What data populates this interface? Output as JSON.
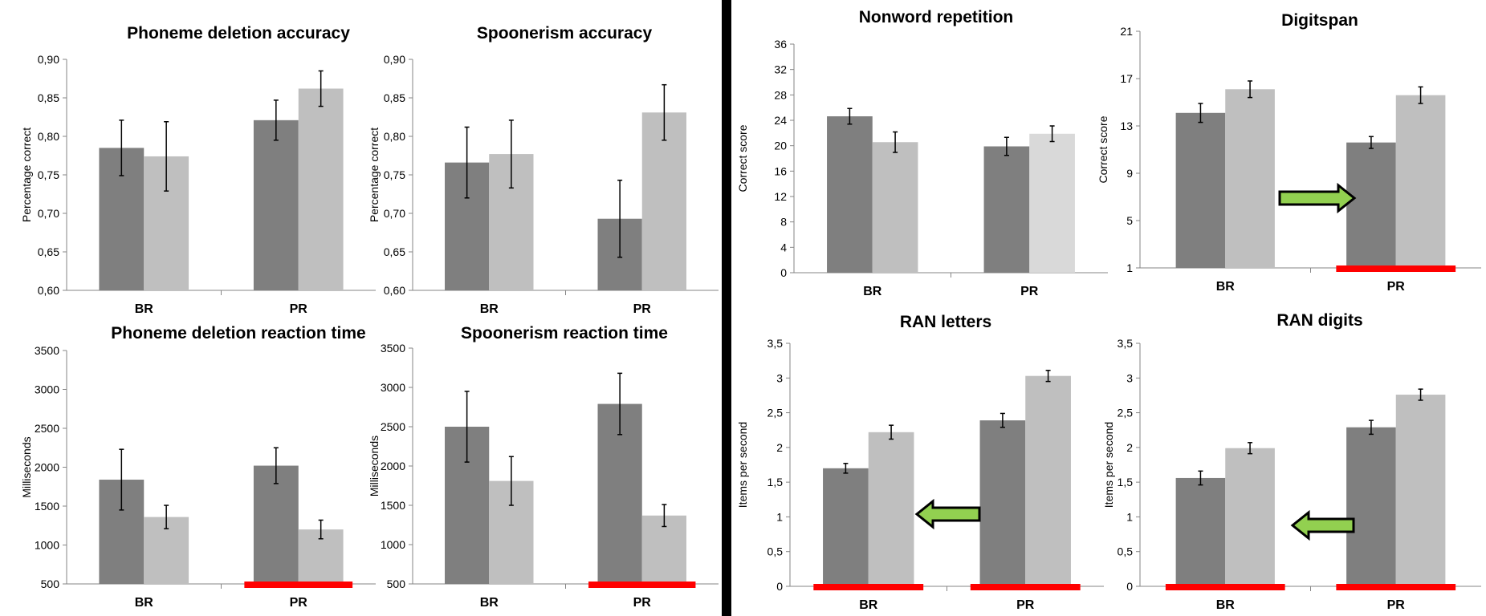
{
  "colors": {
    "dark_bar": "#7f7f7f",
    "light_bar": "#bfbfbf",
    "lighter_bar": "#d9d9d9",
    "highlight": "#ff0000",
    "arrow": "#92d050",
    "axis": "#868686"
  },
  "chart_data": [
    {
      "type": "bar",
      "title": "Phoneme deletion accuracy",
      "xlabel": "",
      "ylabel": "Percentage correct",
      "categories": [
        "BR",
        "PR"
      ],
      "ylim": [
        0.6,
        0.9
      ],
      "yticks": [
        "0,60",
        "0,65",
        "0,70",
        "0,75",
        "0,80",
        "0,85",
        "0,90"
      ],
      "series": [
        {
          "values": [
            0.785,
            0.821
          ],
          "errors": [
            0.036,
            0.026
          ]
        },
        {
          "values": [
            0.774,
            0.862
          ],
          "errors": [
            0.045,
            0.023
          ]
        }
      ],
      "highlight": [],
      "arrow": null
    },
    {
      "type": "bar",
      "title": "Spoonerism accuracy",
      "xlabel": "",
      "ylabel": "Percentage correct",
      "categories": [
        "BR",
        "PR"
      ],
      "ylim": [
        0.6,
        0.9
      ],
      "yticks": [
        "0,60",
        "0,65",
        "0,70",
        "0,75",
        "0,80",
        "0,85",
        "0,90"
      ],
      "series": [
        {
          "values": [
            0.766,
            0.693
          ],
          "errors": [
            0.046,
            0.05
          ]
        },
        {
          "values": [
            0.777,
            0.831
          ],
          "errors": [
            0.044,
            0.036
          ]
        }
      ],
      "highlight": [],
      "arrow": null
    },
    {
      "type": "bar",
      "title": "Phoneme deletion reaction time",
      "xlabel": "",
      "ylabel": "Milliseconds",
      "categories": [
        "BR",
        "PR"
      ],
      "ylim": [
        500,
        3500
      ],
      "yticks": [
        "500",
        "1000",
        "1500",
        "2000",
        "2500",
        "3000",
        "3500"
      ],
      "series": [
        {
          "values": [
            1840,
            2020
          ],
          "errors": [
            390,
            230
          ]
        },
        {
          "values": [
            1360,
            1200
          ],
          "errors": [
            150,
            120
          ]
        }
      ],
      "highlight": [
        "PR"
      ],
      "arrow": null
    },
    {
      "type": "bar",
      "title": "Spoonerism reaction time",
      "xlabel": "",
      "ylabel": "Milliseconds",
      "categories": [
        "BR",
        "PR"
      ],
      "ylim": [
        500,
        3500
      ],
      "yticks": [
        "500",
        "1000",
        "1500",
        "2000",
        "2500",
        "3000",
        "3500"
      ],
      "series": [
        {
          "values": [
            2500,
            2790
          ],
          "errors": [
            450,
            390
          ]
        },
        {
          "values": [
            1810,
            1370
          ],
          "errors": [
            310,
            140
          ]
        }
      ],
      "highlight": [
        "PR"
      ],
      "arrow": null
    },
    {
      "type": "bar",
      "title": "Nonword repetition",
      "xlabel": "",
      "ylabel": "Correct score",
      "categories": [
        "BR",
        "PR"
      ],
      "ylim": [
        0,
        38
      ],
      "yticks": [
        "0",
        "4",
        "8",
        "12",
        "16",
        "20",
        "24",
        "28",
        "32",
        "36"
      ],
      "series": [
        {
          "values": [
            26,
            21
          ],
          "errors": [
            1.3,
            1.5
          ]
        },
        {
          "values": [
            21.7,
            23.1
          ],
          "errors": [
            1.7,
            1.3
          ]
        }
      ],
      "highlight": [],
      "arrow": null
    },
    {
      "type": "bar",
      "title": "Digitspan",
      "xlabel": "",
      "ylabel": "Correct score",
      "categories": [
        "BR",
        "PR"
      ],
      "ylim": [
        1,
        21
      ],
      "yticks": [
        "1",
        "5",
        "9",
        "13",
        "17",
        "21"
      ],
      "series": [
        {
          "values": [
            14.1,
            11.6
          ],
          "errors": [
            0.8,
            0.5
          ]
        },
        {
          "values": [
            16.1,
            15.6
          ],
          "errors": [
            0.7,
            0.7
          ]
        }
      ],
      "highlight": [
        "PR"
      ],
      "arrow": "right"
    },
    {
      "type": "bar",
      "title": "RAN letters",
      "xlabel": "",
      "ylabel": "Items per second",
      "categories": [
        "BR",
        "PR"
      ],
      "ylim": [
        0,
        3.5
      ],
      "yticks": [
        "0",
        "0,5",
        "1",
        "1,5",
        "2",
        "2,5",
        "3",
        "3,5"
      ],
      "series": [
        {
          "values": [
            1.7,
            2.39
          ],
          "errors": [
            0.07,
            0.1
          ]
        },
        {
          "values": [
            2.22,
            3.03
          ],
          "errors": [
            0.1,
            0.08
          ]
        }
      ],
      "highlight": [
        "BR",
        "PR"
      ],
      "arrow": "left"
    },
    {
      "type": "bar",
      "title": "RAN digits",
      "xlabel": "",
      "ylabel": "Items per second",
      "categories": [
        "BR",
        "PR"
      ],
      "ylim": [
        0,
        3.5
      ],
      "yticks": [
        "0",
        "0,5",
        "1",
        "1,5",
        "2",
        "2,5",
        "3",
        "3,5"
      ],
      "series": [
        {
          "values": [
            1.56,
            2.29
          ],
          "errors": [
            0.1,
            0.1
          ]
        },
        {
          "values": [
            1.99,
            2.76
          ],
          "errors": [
            0.08,
            0.08
          ]
        }
      ],
      "highlight": [
        "BR",
        "PR"
      ],
      "arrow": "left"
    }
  ]
}
